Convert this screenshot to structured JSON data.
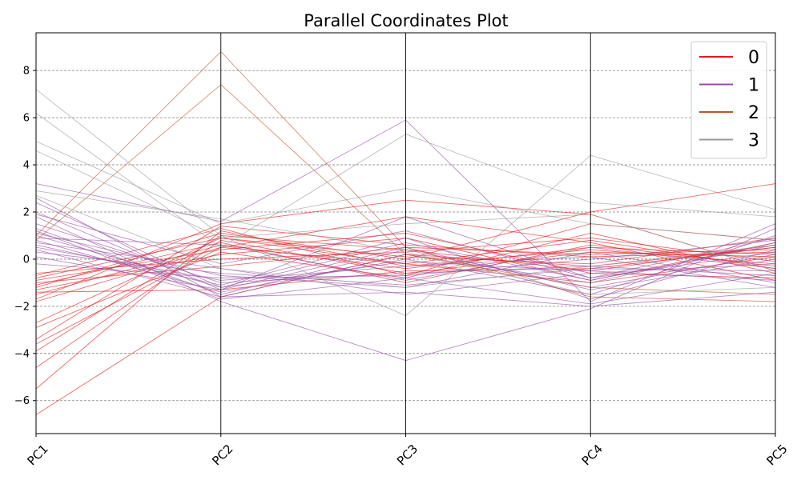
{
  "chart_data": {
    "type": "line",
    "title": "Parallel Coordinates Plot",
    "xlabel": "",
    "ylabel": "",
    "categories": [
      "PC1",
      "PC2",
      "PC3",
      "PC4",
      "PC5"
    ],
    "ylim": [
      -7.4,
      9.6
    ],
    "yticks": [
      -6,
      -4,
      -2,
      0,
      2,
      4,
      6,
      8
    ],
    "grid": true,
    "legend_position": "top-right",
    "classes": [
      {
        "name": "0",
        "color": "#e41a1c"
      },
      {
        "name": "1",
        "color": "#984ea3"
      },
      {
        "name": "2",
        "color": "#c0532b"
      },
      {
        "name": "3",
        "color": "#999999"
      }
    ],
    "series": [
      {
        "class": "0",
        "values": [
          -6.6,
          -1.6,
          0.2,
          -0.3,
          0.5
        ]
      },
      {
        "class": "0",
        "values": [
          -5.5,
          1.2,
          -0.3,
          0.4,
          -0.2
        ]
      },
      {
        "class": "0",
        "values": [
          -4.6,
          0.8,
          -0.6,
          0.3,
          0.1
        ]
      },
      {
        "class": "0",
        "values": [
          -3.9,
          1.0,
          0.4,
          -0.5,
          0.6
        ]
      },
      {
        "class": "0",
        "values": [
          -3.6,
          0.5,
          -0.2,
          0.8,
          -0.4
        ]
      },
      {
        "class": "0",
        "values": [
          -3.4,
          1.4,
          0.6,
          0.1,
          0.3
        ]
      },
      {
        "class": "0",
        "values": [
          -2.9,
          0.3,
          -0.8,
          1.1,
          -0.6
        ]
      },
      {
        "class": "0",
        "values": [
          -2.7,
          0.9,
          0.1,
          -0.2,
          0.9
        ]
      },
      {
        "class": "0",
        "values": [
          -1.7,
          1.5,
          2.5,
          1.9,
          -0.5
        ]
      },
      {
        "class": "0",
        "values": [
          -1.5,
          0.6,
          -0.4,
          0.5,
          0.2
        ]
      },
      {
        "class": "0",
        "values": [
          -1.3,
          0.2,
          0.9,
          -0.9,
          0.7
        ]
      },
      {
        "class": "0",
        "values": [
          -1.2,
          1.1,
          0.0,
          2.0,
          3.2
        ]
      },
      {
        "class": "0",
        "values": [
          -1.1,
          0.7,
          -1.0,
          0.6,
          -0.3
        ]
      },
      {
        "class": "0",
        "values": [
          -1.0,
          -0.3,
          0.5,
          0.2,
          0.4
        ]
      },
      {
        "class": "0",
        "values": [
          -0.9,
          0.4,
          1.1,
          -0.6,
          -0.8
        ]
      },
      {
        "class": "0",
        "values": [
          -0.7,
          1.3,
          -0.7,
          1.5,
          0.8
        ]
      },
      {
        "class": "0",
        "values": [
          -0.6,
          0.0,
          0.3,
          0.9,
          -0.1
        ]
      },
      {
        "class": "0",
        "values": [
          -1.4,
          -1.3,
          -0.5,
          -0.4,
          0.5
        ]
      },
      {
        "class": "0",
        "values": [
          -1.8,
          0.5,
          1.8,
          0.7,
          -0.9
        ]
      },
      {
        "class": "0",
        "values": [
          -0.8,
          0.9,
          -0.2,
          -1.0,
          0.1
        ]
      },
      {
        "class": "1",
        "values": [
          3.2,
          1.6,
          5.9,
          -1.8,
          1.5
        ]
      },
      {
        "class": "1",
        "values": [
          2.6,
          -1.6,
          -1.4,
          -2.0,
          -1.4
        ]
      },
      {
        "class": "1",
        "values": [
          2.0,
          -1.3,
          1.8,
          -0.8,
          0.9
        ]
      },
      {
        "class": "1",
        "values": [
          1.8,
          -1.8,
          -4.3,
          -2.1,
          1.3
        ]
      },
      {
        "class": "1",
        "values": [
          1.5,
          -1.0,
          -0.6,
          -0.3,
          -0.7
        ]
      },
      {
        "class": "1",
        "values": [
          1.3,
          -1.5,
          0.4,
          -1.2,
          0.2
        ]
      },
      {
        "class": "1",
        "values": [
          1.1,
          -0.7,
          -1.2,
          0.3,
          -1.0
        ]
      },
      {
        "class": "1",
        "values": [
          1.0,
          -1.2,
          0.7,
          -0.9,
          0.6
        ]
      },
      {
        "class": "1",
        "values": [
          0.9,
          0.6,
          -0.9,
          0.5,
          -0.4
        ]
      },
      {
        "class": "1",
        "values": [
          0.8,
          -1.4,
          0.0,
          -1.5,
          1.0
        ]
      },
      {
        "class": "1",
        "values": [
          0.7,
          -0.4,
          -1.5,
          -0.6,
          -0.2
        ]
      },
      {
        "class": "1",
        "values": [
          0.6,
          -1.1,
          0.9,
          -1.7,
          0.4
        ]
      },
      {
        "class": "1",
        "values": [
          0.5,
          -0.9,
          -0.3,
          0.1,
          -1.2
        ]
      },
      {
        "class": "1",
        "values": [
          0.4,
          -1.6,
          0.2,
          -1.0,
          0.7
        ]
      },
      {
        "class": "1",
        "values": [
          0.3,
          -0.6,
          -1.1,
          -0.4,
          -0.5
        ]
      },
      {
        "class": "1",
        "values": [
          0.1,
          -1.3,
          0.5,
          -1.3,
          0.0
        ]
      },
      {
        "class": "1",
        "values": [
          -0.2,
          -0.8,
          -0.7,
          0.0,
          0.8
        ]
      },
      {
        "class": "1",
        "values": [
          2.4,
          -1.2,
          -0.1,
          -0.5,
          -0.9
        ]
      },
      {
        "class": "1",
        "values": [
          1.9,
          -0.2,
          1.2,
          -0.8,
          0.3
        ]
      },
      {
        "class": "1",
        "values": [
          1.2,
          -1.7,
          -0.8,
          -1.9,
          -0.6
        ]
      },
      {
        "class": "2",
        "values": [
          1.0,
          8.8,
          0.5,
          -1.6,
          -1.8
        ]
      },
      {
        "class": "2",
        "values": [
          0.8,
          7.4,
          0.2,
          -1.2,
          -1.5
        ]
      },
      {
        "class": "3",
        "values": [
          7.2,
          1.0,
          -2.4,
          4.4,
          2.1
        ]
      },
      {
        "class": "3",
        "values": [
          6.2,
          0.5,
          5.3,
          2.4,
          1.8
        ]
      },
      {
        "class": "3",
        "values": [
          5.0,
          1.5,
          3.0,
          1.5,
          0.8
        ]
      },
      {
        "class": "3",
        "values": [
          4.6,
          0.9,
          1.5,
          1.9,
          -0.5
        ]
      },
      {
        "class": "3",
        "values": [
          2.9,
          1.7,
          0.3,
          -1.5,
          -1.2
        ]
      },
      {
        "class": "3",
        "values": [
          2.7,
          -0.4,
          -1.2,
          -0.3,
          0.6
        ]
      }
    ]
  }
}
